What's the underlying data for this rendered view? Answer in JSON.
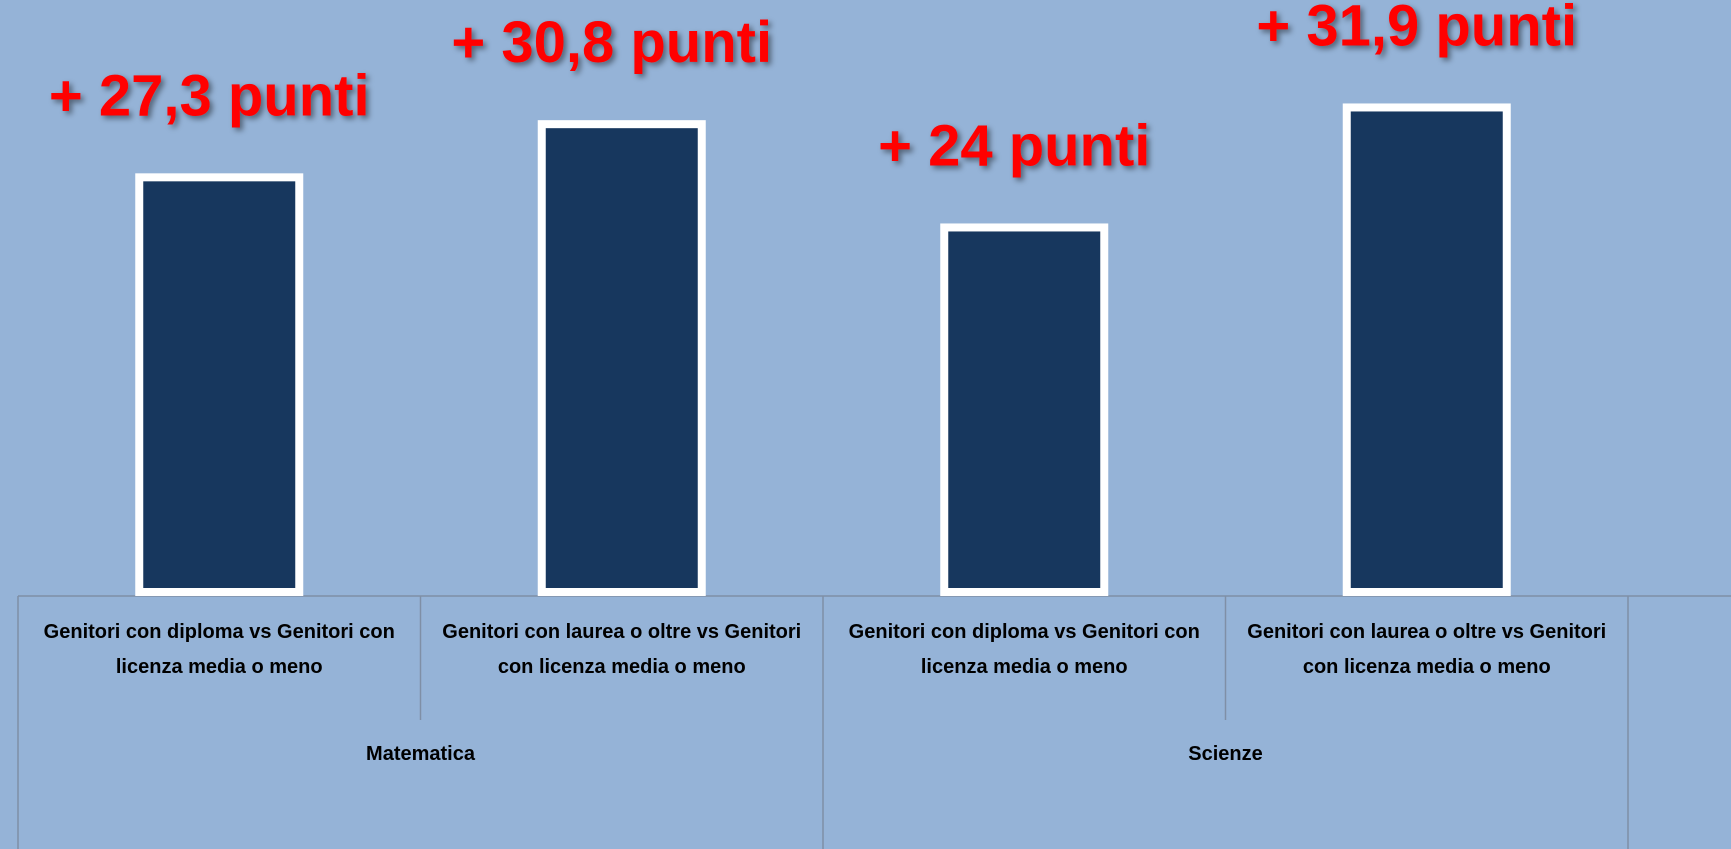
{
  "chart_data": {
    "type": "bar",
    "categories": [
      "Genitori con diploma vs Genitori con licenza media o meno",
      "Genitori con laurea o oltre  vs Genitori con licenza media o meno",
      "Genitori con diploma vs Genitori con licenza media o meno",
      "Genitori con laurea o oltre  vs Genitori con licenza media o meno"
    ],
    "groups": [
      "Matematica",
      "Scienze"
    ],
    "values": [
      27.3,
      30.8,
      24,
      31.9
    ],
    "value_labels": [
      "+ 27,3 punti",
      "+ 30,8 punti",
      "+ 24 punti",
      "+ 31,9 punti"
    ],
    "color": "#17375e",
    "ylim": [
      0,
      37
    ]
  }
}
